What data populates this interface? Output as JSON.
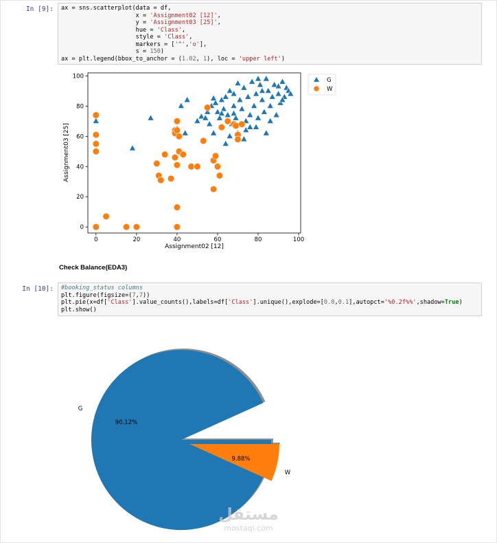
{
  "cells": [
    {
      "prompt": "In [9]:",
      "code_lines": [
        [
          {
            "t": "ax = sns.scatterplot(data = df,",
            "c": ""
          }
        ],
        [
          {
            "t": "                     x = ",
            "c": ""
          },
          {
            "t": "'Assignment02 [12]'",
            "c": "s"
          },
          {
            "t": ",",
            "c": ""
          }
        ],
        [
          {
            "t": "                     y = ",
            "c": ""
          },
          {
            "t": "'Assignment03 [25]'",
            "c": "s"
          },
          {
            "t": ",",
            "c": ""
          }
        ],
        [
          {
            "t": "                     hue = ",
            "c": ""
          },
          {
            "t": "'Class'",
            "c": "s"
          },
          {
            "t": ",",
            "c": ""
          }
        ],
        [
          {
            "t": "                     style = ",
            "c": ""
          },
          {
            "t": "'Class'",
            "c": "s"
          },
          {
            "t": ",",
            "c": ""
          }
        ],
        [
          {
            "t": "                     markers = [",
            "c": ""
          },
          {
            "t": "'^'",
            "c": "s"
          },
          {
            "t": ",",
            "c": ""
          },
          {
            "t": "'o'",
            "c": "s"
          },
          {
            "t": "],",
            "c": ""
          }
        ],
        [
          {
            "t": "                     s = ",
            "c": ""
          },
          {
            "t": "150",
            "c": "m"
          },
          {
            "t": ")",
            "c": ""
          }
        ],
        [
          {
            "t": "ax = plt.legend(bbox_to_anchor = (",
            "c": ""
          },
          {
            "t": "1.02",
            "c": "m"
          },
          {
            "t": ", ",
            "c": ""
          },
          {
            "t": "1",
            "c": "m"
          },
          {
            "t": "), loc = ",
            "c": ""
          },
          {
            "t": "'upper left'",
            "c": "s"
          },
          {
            "t": ")",
            "c": ""
          }
        ]
      ]
    },
    {
      "prompt": "In [10]:",
      "code_lines": [
        [
          {
            "t": "#booking_status columns",
            "c": "c"
          }
        ],
        [
          {
            "t": "plt.figure(figsize=(",
            "c": ""
          },
          {
            "t": "7",
            "c": "m"
          },
          {
            "t": ",",
            "c": ""
          },
          {
            "t": "7",
            "c": "m"
          },
          {
            "t": "))",
            "c": ""
          }
        ],
        [
          {
            "t": "plt.pie(x=df[",
            "c": ""
          },
          {
            "t": "'Class'",
            "c": "s"
          },
          {
            "t": "].value_counts(),labels=df[",
            "c": ""
          },
          {
            "t": "'Class'",
            "c": "s"
          },
          {
            "t": "].unique(),explode=[",
            "c": ""
          },
          {
            "t": "0.0",
            "c": "m"
          },
          {
            "t": ",",
            "c": ""
          },
          {
            "t": "0.1",
            "c": "m"
          },
          {
            "t": "],autopct=",
            "c": ""
          },
          {
            "t": "'%0.2f%%'",
            "c": "s"
          },
          {
            "t": ",shadow=",
            "c": ""
          },
          {
            "t": "True",
            "c": "k"
          },
          {
            "t": ")",
            "c": ""
          }
        ],
        [
          {
            "t": "plt.show()",
            "c": ""
          }
        ]
      ]
    }
  ],
  "markdown_heading": "Check Balance(EDA3)",
  "colors": {
    "blue": "#1f77b4",
    "orange": "#ff7f0e"
  },
  "chart_data": [
    {
      "type": "scatter",
      "xlabel": "Assignment02 [12]",
      "ylabel": "Assignment03 [25]",
      "xticks": [
        0,
        20,
        40,
        60,
        80,
        100
      ],
      "yticks": [
        0,
        20,
        40,
        60,
        80,
        100
      ],
      "xlim": [
        -4,
        101
      ],
      "ylim": [
        -4,
        102
      ],
      "legend": {
        "placement": "outside-upper-left",
        "entries": [
          "G",
          "W"
        ]
      },
      "series": [
        {
          "name": "G",
          "marker": "triangle",
          "color": "#1f77b4",
          "points": [
            [
              0,
              70
            ],
            [
              18,
              52
            ],
            [
              27,
              72
            ],
            [
              40,
              65
            ],
            [
              42,
              80
            ],
            [
              45,
              84
            ],
            [
              44,
              62
            ],
            [
              50,
              70
            ],
            [
              52,
              73
            ],
            [
              54,
              72
            ],
            [
              55,
              76
            ],
            [
              56,
              68
            ],
            [
              57,
              80
            ],
            [
              58,
              62
            ],
            [
              59,
              82
            ],
            [
              60,
              76
            ],
            [
              61,
              72
            ],
            [
              62,
              84
            ],
            [
              63,
              78
            ],
            [
              64,
              86
            ],
            [
              65,
              74
            ],
            [
              66,
              90
            ],
            [
              67,
              68
            ],
            [
              68,
              80
            ],
            [
              68,
              88
            ],
            [
              69,
              72
            ],
            [
              70,
              62
            ],
            [
              71,
              84
            ],
            [
              72,
              78
            ],
            [
              73,
              92
            ],
            [
              74,
              70
            ],
            [
              75,
              86
            ],
            [
              76,
              74
            ],
            [
              77,
              96
            ],
            [
              78,
              80
            ],
            [
              79,
              88
            ],
            [
              80,
              72
            ],
            [
              81,
              94
            ],
            [
              82,
              84
            ],
            [
              83,
              76
            ],
            [
              84,
              98
            ],
            [
              85,
              90
            ],
            [
              86,
              80
            ],
            [
              87,
              86
            ],
            [
              88,
              94
            ],
            [
              89,
              74
            ],
            [
              90,
              88
            ],
            [
              91,
              82
            ],
            [
              92,
              96
            ],
            [
              93,
              86
            ],
            [
              94,
              92
            ],
            [
              95,
              90
            ],
            [
              96,
              88
            ],
            [
              66,
              60
            ],
            [
              64,
              55
            ],
            [
              71,
              68
            ],
            [
              74,
              64
            ],
            [
              79,
              66
            ],
            [
              86,
              70
            ],
            [
              80,
              98
            ],
            [
              70,
              95
            ],
            [
              62,
              75
            ],
            [
              58,
              85
            ],
            [
              73,
              58
            ],
            [
              76,
              66
            ],
            [
              84,
              62
            ],
            [
              90,
              93
            ],
            [
              92,
              84
            ],
            [
              68,
              75
            ],
            [
              82,
              90
            ]
          ]
        },
        {
          "name": "W",
          "marker": "circle",
          "color": "#ff7f0e",
          "points": [
            [
              0,
              74
            ],
            [
              0,
              61
            ],
            [
              0,
              55
            ],
            [
              0,
              50
            ],
            [
              0,
              0
            ],
            [
              5,
              7
            ],
            [
              15,
              0
            ],
            [
              20,
              0
            ],
            [
              30,
              42
            ],
            [
              31,
              34
            ],
            [
              32,
              31
            ],
            [
              34,
              48
            ],
            [
              37,
              32
            ],
            [
              39,
              64
            ],
            [
              39,
              62
            ],
            [
              39,
              46
            ],
            [
              40,
              70
            ],
            [
              40,
              64
            ],
            [
              40,
              41
            ],
            [
              40,
              13
            ],
            [
              40,
              0
            ],
            [
              41,
              60
            ],
            [
              41,
              50
            ],
            [
              43,
              48
            ],
            [
              47,
              40
            ],
            [
              50,
              40
            ],
            [
              53,
              57
            ],
            [
              55,
              79
            ],
            [
              58,
              44
            ],
            [
              58,
              25
            ],
            [
              59,
              47
            ],
            [
              60,
              40
            ],
            [
              61,
              34
            ],
            [
              62,
              66
            ],
            [
              65,
              70
            ],
            [
              68,
              68
            ],
            [
              69,
              67
            ],
            [
              70,
              61
            ],
            [
              70,
              58
            ],
            [
              72,
              68
            ]
          ]
        }
      ]
    },
    {
      "type": "pie",
      "labels": [
        "G",
        "W"
      ],
      "values": [
        90.12,
        9.88
      ],
      "data_labels": [
        "90.12%",
        "9.88%"
      ],
      "explode": [
        0.0,
        0.1
      ],
      "shadow": true,
      "colors": [
        "#1f77b4",
        "#ff7f0e"
      ]
    }
  ],
  "watermark": {
    "arabic": "مستقل",
    "latin": "mostaql.com"
  }
}
